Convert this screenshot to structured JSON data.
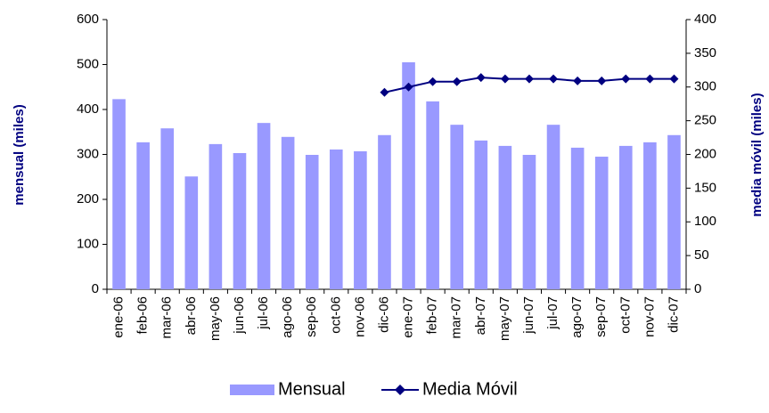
{
  "chart_data": {
    "type": "bar_line",
    "categories": [
      "ene-06",
      "feb-06",
      "mar-06",
      "abr-06",
      "may-06",
      "jun-06",
      "jul-06",
      "ago-06",
      "sep-06",
      "oct-06",
      "nov-06",
      "dic-06",
      "ene-07",
      "feb-07",
      "mar-07",
      "abr-07",
      "may-07",
      "jun-07",
      "jul-07",
      "ago-07",
      "sep-07",
      "oct-07",
      "nov-07",
      "dic-07"
    ],
    "series": [
      {
        "name": "Mensual",
        "type": "bar",
        "color": "#9999ff",
        "values": [
          423,
          327,
          358,
          251,
          323,
          303,
          370,
          339,
          299,
          311,
          307,
          343,
          505,
          418,
          366,
          331,
          319,
          299,
          366,
          315,
          295,
          319,
          327,
          343
        ]
      },
      {
        "name": "Media Móvil",
        "type": "line",
        "axis": "y2",
        "color": "#000080",
        "values": [
          null,
          null,
          null,
          null,
          null,
          null,
          null,
          null,
          null,
          null,
          null,
          292,
          300,
          308,
          308,
          314,
          312,
          312,
          312,
          309,
          309,
          312,
          312,
          312
        ]
      }
    ],
    "ylabel": "mensual (miles)",
    "y2label": "media móvil (miles)",
    "ylim": [
      0,
      600
    ],
    "yticks": [
      0,
      100,
      200,
      300,
      400,
      500,
      600
    ],
    "y2lim": [
      0,
      400
    ],
    "y2ticks": [
      0,
      50,
      100,
      150,
      200,
      250,
      300,
      350,
      400
    ],
    "legend": "bottom"
  }
}
